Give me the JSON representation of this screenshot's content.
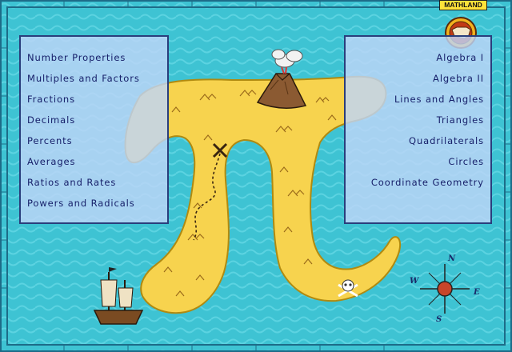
{
  "badge": {
    "label": "MATHLAND"
  },
  "left_menu": {
    "items": [
      "Number Properties",
      "Multiples and Factors",
      "Fractions",
      "Decimals",
      "Percents",
      "Averages",
      "Ratios and Rates",
      "Powers and Radicals"
    ]
  },
  "right_menu": {
    "items": [
      "Algebra I",
      "Algebra II",
      "Lines and Angles",
      "Triangles",
      "Quadrilaterals",
      "Circles",
      "Coordinate Geometry"
    ]
  },
  "compass": {
    "n": "N",
    "e": "E",
    "s": "S",
    "w": "W"
  },
  "colors": {
    "sea": "#3ec3d3",
    "island": "#f7d34e",
    "panel_border": "#2a3e7c",
    "text": "#17206a",
    "badge": "#ffe23a"
  }
}
